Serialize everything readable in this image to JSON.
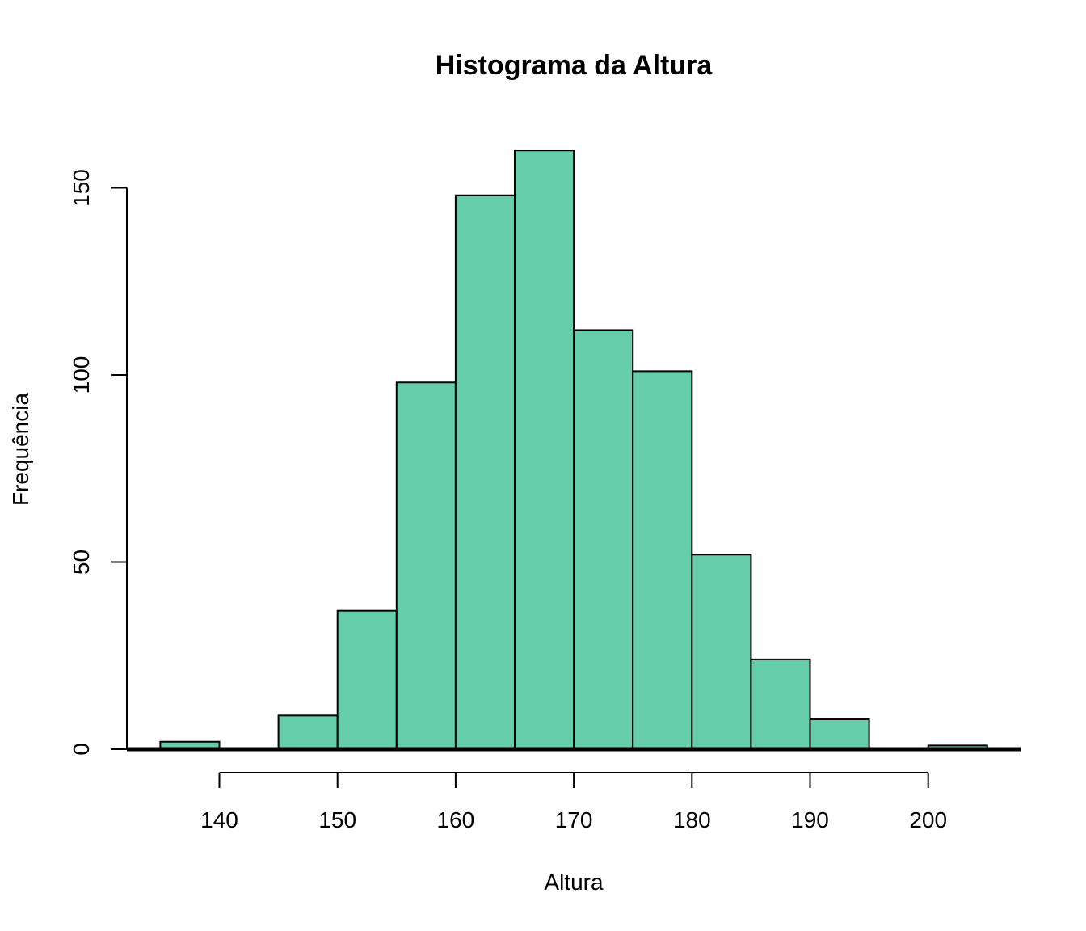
{
  "chart_data": {
    "type": "bar",
    "title": "Histograma da Altura",
    "xlabel": "Altura",
    "ylabel": "Frequência",
    "bin_edges": [
      135,
      140,
      145,
      150,
      155,
      160,
      165,
      170,
      175,
      180,
      185,
      190,
      195,
      200,
      205
    ],
    "values": [
      2,
      0,
      9,
      37,
      98,
      148,
      160,
      112,
      101,
      52,
      24,
      8,
      0,
      1
    ],
    "xlim": [
      135,
      205
    ],
    "ylim": [
      0,
      160
    ],
    "x_ticks": [
      140,
      150,
      160,
      170,
      180,
      190,
      200
    ],
    "y_ticks": [
      0,
      50,
      100,
      150
    ],
    "grid": false,
    "legend": "none",
    "colors": {
      "bar_fill": "#66CDAA",
      "bar_stroke": "#000000"
    }
  }
}
